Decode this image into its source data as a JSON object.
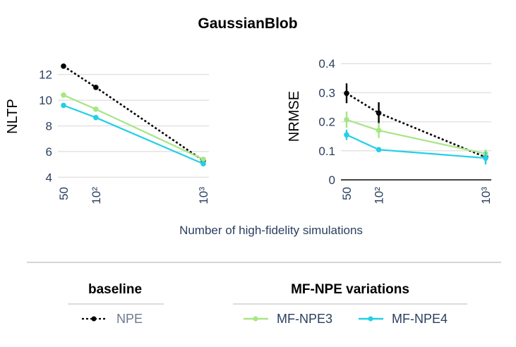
{
  "chart_data": [
    {
      "type": "line",
      "title": "GaussianBlob",
      "xlabel": "Number of high-fidelity simulations",
      "ylabel": "NLTP",
      "x": [
        50,
        100,
        1000
      ],
      "xscale": "log",
      "xtick_labels": [
        "50",
        "10²",
        "10³"
      ],
      "ylim": [
        3.8,
        13.3
      ],
      "yticks": [
        4,
        6,
        8,
        10,
        12
      ],
      "grid": true,
      "series": [
        {
          "name": "NPE",
          "style": "dotted",
          "color": "#000000",
          "values": [
            12.65,
            11.0,
            5.3
          ]
        },
        {
          "name": "MF-NPE3",
          "style": "solid",
          "color": "#a6e684",
          "values": [
            10.4,
            9.3,
            5.4
          ]
        },
        {
          "name": "MF-NPE4",
          "style": "solid",
          "color": "#23cfe8",
          "values": [
            9.6,
            8.65,
            5.05
          ]
        }
      ]
    },
    {
      "type": "line",
      "title": "GaussianBlob",
      "xlabel": "Number of high-fidelity simulations",
      "ylabel": "NRMSE",
      "x": [
        50,
        100,
        1000
      ],
      "xscale": "log",
      "xtick_labels": [
        "50",
        "10²",
        "10³"
      ],
      "ylim": [
        0,
        0.42
      ],
      "yticks": [
        0,
        0.1,
        0.2,
        0.3,
        0.4
      ],
      "ytick_labels": [
        "0",
        "0.1",
        "0.2",
        "0.3",
        "0.4"
      ],
      "grid": true,
      "series": [
        {
          "name": "NPE",
          "style": "dotted",
          "color": "#000000",
          "values": [
            0.298,
            0.23,
            0.078
          ],
          "errors": [
            0.034,
            0.037,
            0.015
          ]
        },
        {
          "name": "MF-NPE3",
          "style": "solid",
          "color": "#a6e684",
          "values": [
            0.207,
            0.17,
            0.09
          ],
          "errors": [
            0.028,
            0.026,
            0.015
          ]
        },
        {
          "name": "MF-NPE4",
          "style": "solid",
          "color": "#23cfe8",
          "values": [
            0.155,
            0.104,
            0.075
          ],
          "errors": [
            0.018,
            0.006,
            0.022
          ]
        }
      ]
    }
  ],
  "figure": {
    "title": "GaussianBlob",
    "xlabel": "Number of high-fidelity simulations"
  },
  "legend": {
    "groups": [
      {
        "title": "baseline",
        "entries": [
          {
            "name": "NPE",
            "color": "#000000",
            "style": "dotted"
          }
        ]
      },
      {
        "title": "MF-NPE variations",
        "entries": [
          {
            "name": "MF-NPE3",
            "color": "#a6e684",
            "style": "solid"
          },
          {
            "name": "MF-NPE4",
            "color": "#23cfe8",
            "style": "solid"
          }
        ]
      }
    ]
  }
}
